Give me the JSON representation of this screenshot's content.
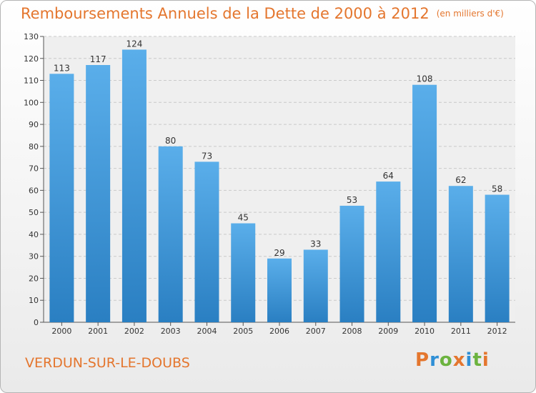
{
  "chart_data": {
    "type": "bar",
    "title": "Remboursements Annuels de la Dette de 2000 à 2012",
    "unit_label": "(en milliers d'€)",
    "categories": [
      "2000",
      "2001",
      "2002",
      "2003",
      "2004",
      "2005",
      "2006",
      "2007",
      "2008",
      "2009",
      "2010",
      "2011",
      "2012"
    ],
    "values": [
      113,
      117,
      124,
      80,
      73,
      45,
      29,
      33,
      53,
      64,
      108,
      62,
      58
    ],
    "ylim": [
      0,
      130
    ],
    "yticks": [
      0,
      10,
      20,
      30,
      40,
      50,
      60,
      70,
      80,
      90,
      100,
      110,
      120,
      130
    ],
    "xlabel": "",
    "ylabel": "",
    "grid": "horizontal dashed",
    "bar_color": "#3f93d6"
  },
  "footer": {
    "town": "VERDUN-SUR-LE-DOUBS",
    "logo_text": "Proxiti",
    "logo_colors": [
      "#e4762e",
      "#2f8fd6",
      "#6cb33f",
      "#e4762e",
      "#2f8fd6",
      "#6cb33f",
      "#e4762e"
    ]
  }
}
